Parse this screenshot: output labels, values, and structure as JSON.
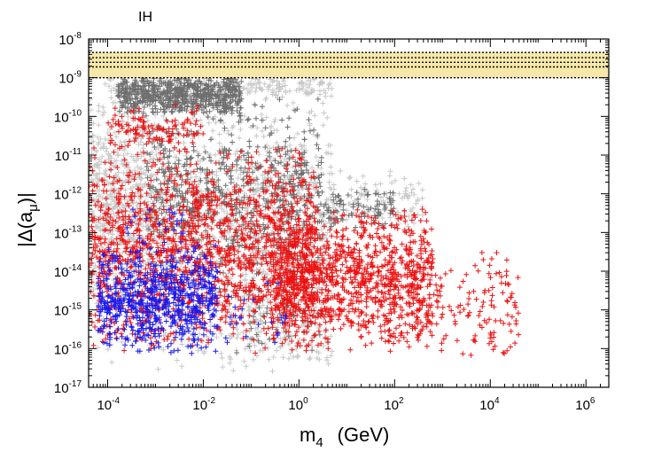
{
  "chart_data": {
    "type": "scatter",
    "panel_label": "IH",
    "xscale": "log",
    "yscale": "log",
    "xlim": [
      4e-05,
      3000000
    ],
    "ylim": [
      1e-17,
      1e-08
    ],
    "xlabel": {
      "main": "m",
      "sub": "4",
      "unit": "(GeV)"
    },
    "ylabel": {
      "pre": "|Δ(a",
      "sub": "μ",
      "post": ")|"
    },
    "x_ticks": [
      {
        "value": 0.0001,
        "base": "10",
        "exp": "-4"
      },
      {
        "value": 0.01,
        "base": "10",
        "exp": "-2"
      },
      {
        "value": 1,
        "base": "10",
        "exp": "0"
      },
      {
        "value": 100,
        "base": "10",
        "exp": "2"
      },
      {
        "value": 10000,
        "base": "10",
        "exp": "4"
      },
      {
        "value": 1000000,
        "base": "10",
        "exp": "6"
      }
    ],
    "y_ticks": [
      {
        "value": 1e-08,
        "base": "10",
        "exp": "-8"
      },
      {
        "value": 1e-09,
        "base": "10",
        "exp": "-9"
      },
      {
        "value": 1e-10,
        "base": "10",
        "exp": "-10"
      },
      {
        "value": 1e-11,
        "base": "10",
        "exp": "-11"
      },
      {
        "value": 1e-12,
        "base": "10",
        "exp": "-12"
      },
      {
        "value": 1e-13,
        "base": "10",
        "exp": "-13"
      },
      {
        "value": 1e-14,
        "base": "10",
        "exp": "-14"
      },
      {
        "value": 1e-15,
        "base": "10",
        "exp": "-15"
      },
      {
        "value": 1e-16,
        "base": "10",
        "exp": "-16"
      },
      {
        "value": 1e-17,
        "base": "10",
        "exp": "-17"
      }
    ],
    "experimental_band": {
      "central": 2.5e-09,
      "one_sigma": [
        1.9e-09,
        3.3e-09
      ],
      "outer": [
        1e-09,
        4.5e-09
      ],
      "fill_color": "#f7e7a8",
      "line_style": "dotted"
    },
    "marker": "+",
    "series": [
      {
        "name": "light-gray region",
        "color": "#c8c8c8",
        "regions": [
          {
            "log10_x": [
              -4.4,
              0.7
            ],
            "log10_y": [
              -16.6,
              -9.0
            ],
            "count": 1400
          },
          {
            "log10_x": [
              -4.4,
              -3.0
            ],
            "log10_y": [
              -15.0,
              -9.2
            ],
            "count": 300
          },
          {
            "log10_x": [
              -4.0,
              0.7
            ],
            "log10_y": [
              -9.6,
              -8.9
            ],
            "count": 250
          },
          {
            "log10_x": [
              0.6,
              2.6
            ],
            "log10_y": [
              -13.0,
              -11.3
            ],
            "count": 120
          },
          {
            "log10_x": [
              -1.5,
              0.7
            ],
            "log10_y": [
              -16.6,
              -14.5
            ],
            "count": 140
          }
        ]
      },
      {
        "name": "dark-gray region",
        "color": "#6e6e6e",
        "regions": [
          {
            "log10_x": [
              -3.8,
              -1.2
            ],
            "log10_y": [
              -10.0,
              -8.9
            ],
            "count": 650
          },
          {
            "log10_x": [
              -3.2,
              0.5
            ],
            "log10_y": [
              -14.5,
              -9.5
            ],
            "count": 650
          },
          {
            "log10_x": [
              0.5,
              2.0
            ],
            "log10_y": [
              -13.0,
              -11.8
            ],
            "count": 90
          },
          {
            "log10_x": [
              -1.5,
              0.5
            ],
            "log10_y": [
              -16.2,
              -14.0
            ],
            "count": 60
          }
        ]
      },
      {
        "name": "red points",
        "color": "#ee1111",
        "regions": [
          {
            "log10_x": [
              -4.4,
              0.4
            ],
            "log10_y": [
              -16.2,
              -10.6
            ],
            "count": 1500
          },
          {
            "log10_x": [
              -0.6,
              2.8
            ],
            "log10_y": [
              -16.2,
              -12.2
            ],
            "count": 1100
          },
          {
            "log10_x": [
              2.4,
              4.6
            ],
            "log10_y": [
              -16.4,
              -13.4
            ],
            "count": 150
          },
          {
            "log10_x": [
              -4.0,
              -2.0
            ],
            "log10_y": [
              -11.0,
              -9.6
            ],
            "count": 120
          }
        ]
      },
      {
        "name": "blue points",
        "color": "#1a1aee",
        "regions": [
          {
            "log10_x": [
              -4.2,
              -1.7
            ],
            "log10_y": [
              -16.2,
              -13.3
            ],
            "count": 700
          },
          {
            "log10_x": [
              -3.6,
              -2.4
            ],
            "log10_y": [
              -13.5,
              -12.2
            ],
            "count": 25
          },
          {
            "log10_x": [
              -1.6,
              -0.2
            ],
            "log10_y": [
              -16.2,
              -14.2
            ],
            "count": 25
          }
        ]
      }
    ]
  }
}
